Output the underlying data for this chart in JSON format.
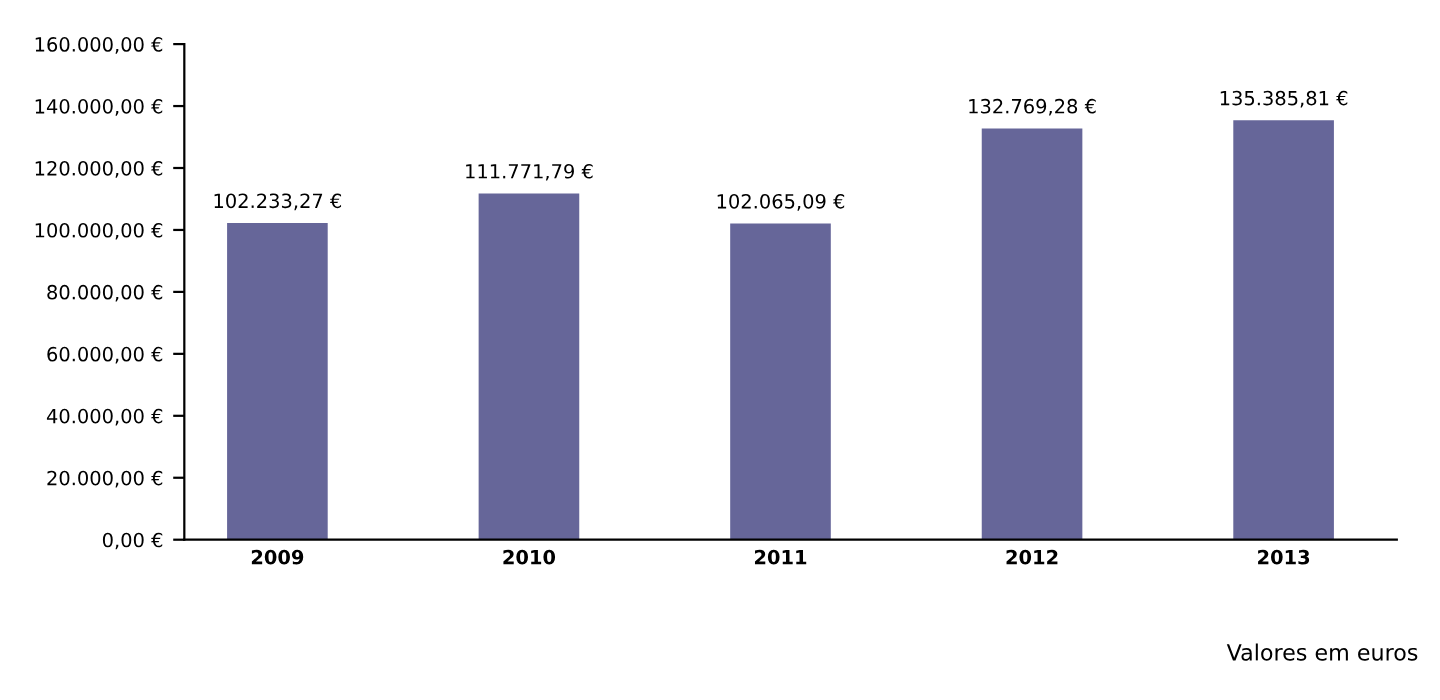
{
  "chart_data": {
    "type": "bar",
    "categories": [
      "2009",
      "2010",
      "2011",
      "2012",
      "2013"
    ],
    "values": [
      102233.27,
      111771.79,
      102065.09,
      132769.28,
      135385.81
    ],
    "color": "#666699",
    "value_labels": [
      "102.233,27 €",
      "111.771,79 €",
      "102.065,09 €",
      "132.769,28 €",
      "135.385,81 €"
    ],
    "ylim": [
      0,
      160000
    ],
    "yticks": [
      {
        "value": 0,
        "label": "0,00 €"
      },
      {
        "value": 20000,
        "label": "20.000,00 €"
      },
      {
        "value": 40000,
        "label": "40.000,00 €"
      },
      {
        "value": 60000,
        "label": "60.000,00 €"
      },
      {
        "value": 80000,
        "label": "80.000,00 €"
      },
      {
        "value": 100000,
        "label": "100.000,00 €"
      },
      {
        "value": 120000,
        "label": "120.000,00 €"
      },
      {
        "value": 140000,
        "label": "140.000,00 €"
      },
      {
        "value": 160000,
        "label": "160.000,00 €"
      }
    ],
    "grid": false,
    "legend": false,
    "annotations": [
      "Valores em euros"
    ]
  }
}
